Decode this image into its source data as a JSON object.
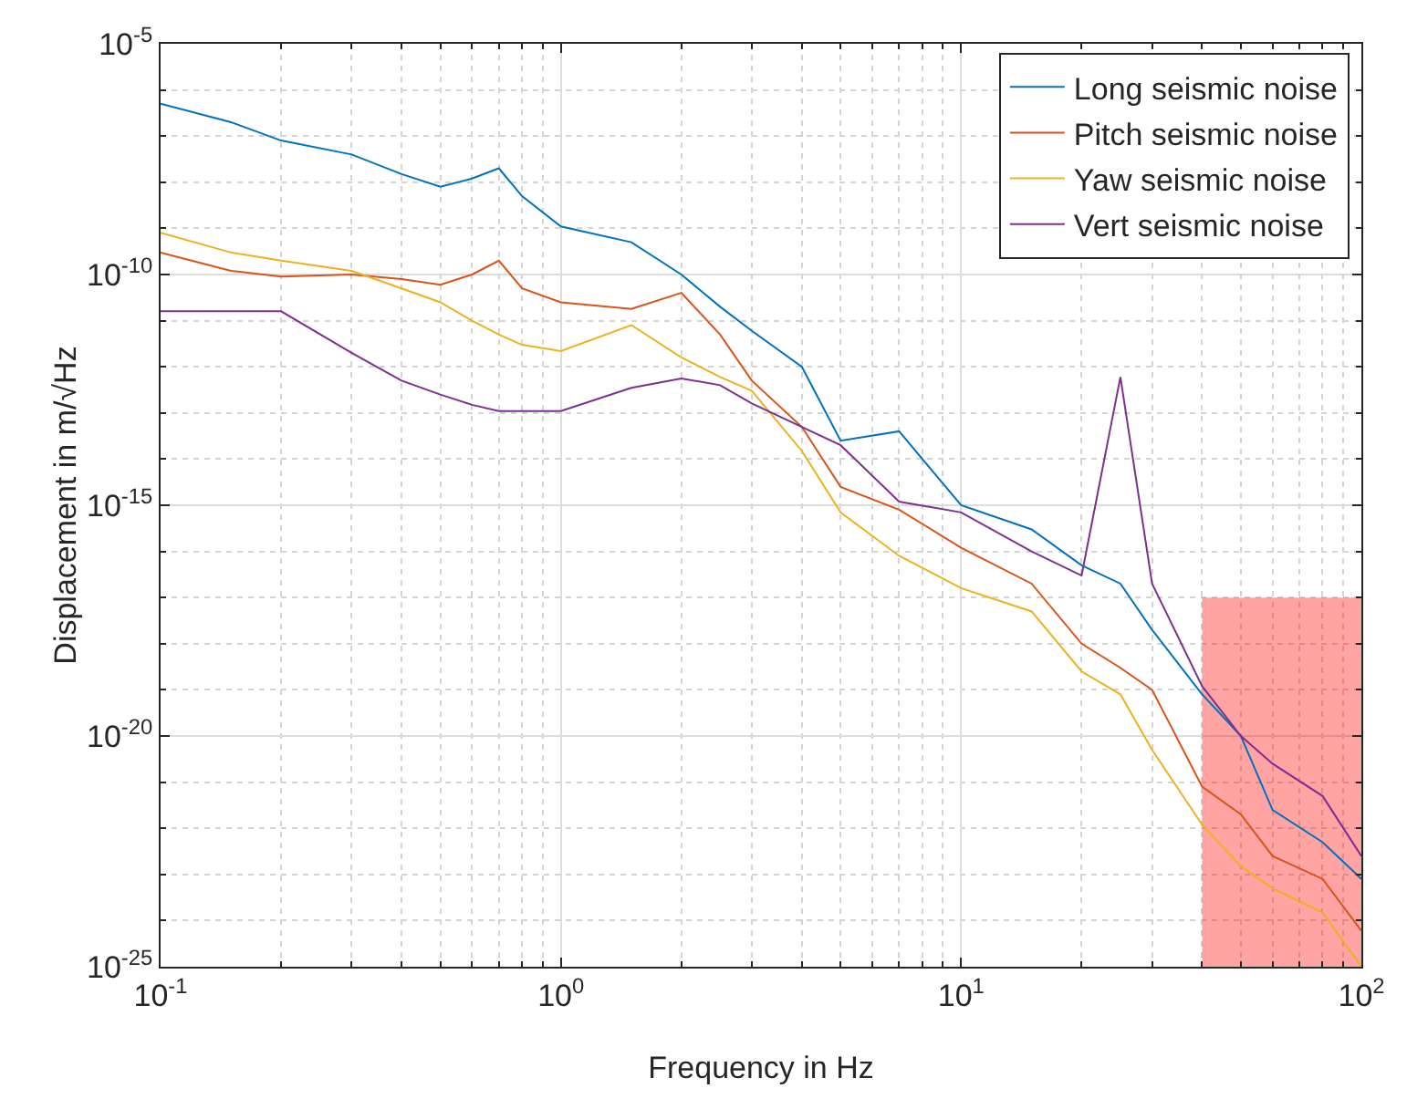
{
  "chart_data": {
    "type": "line",
    "xlabel": "Frequency in Hz",
    "ylabel": "Displacement in m/√Hz",
    "log": "xy",
    "grid": true,
    "legend": "top right",
    "x": [
      0.1,
      0.15,
      0.2,
      0.3,
      0.4,
      0.5,
      0.6,
      0.7,
      0.8,
      1,
      1.5,
      2,
      2.5,
      3,
      4,
      5,
      7,
      10,
      15,
      20,
      25,
      30,
      40,
      50,
      60,
      80,
      100
    ],
    "xlim": [
      0.1,
      100
    ],
    "xticks": [
      {
        "value": 0.1,
        "label": "10$^{-1}$"
      },
      {
        "value": 1,
        "label": "10$^{0}$"
      },
      {
        "value": 10,
        "label": "10$^{1}$"
      },
      {
        "value": 100,
        "label": "10$^{2}$"
      }
    ],
    "ylim": [
      1e-25,
      1e-05
    ],
    "yticks": [
      {
        "value": 1e-25,
        "label": "10$^{-25}$"
      },
      {
        "value": 1e-20,
        "label": "10$^{-20}$"
      },
      {
        "value": 1e-15,
        "label": "10$^{-15}$"
      },
      {
        "value": 1e-10,
        "label": "10$^{-10}$"
      },
      {
        "value": 1e-05,
        "label": "10$^{-5}$"
      }
    ],
    "series": [
      {
        "name": "Long seismic noise",
        "color": "#0072bd",
        "values": [
          5e-07,
          2e-07,
          8e-08,
          4e-08,
          1.5e-08,
          8e-09,
          1.2e-08,
          2e-08,
          5e-09,
          1.1e-09,
          5e-10,
          1e-10,
          2e-11,
          6e-12,
          1e-12,
          2.5e-14,
          4e-14,
          1e-15,
          3e-16,
          5e-17,
          2e-17,
          2e-18,
          8e-20,
          1e-20,
          2.5e-22,
          5e-23,
          8e-24
        ]
      },
      {
        "name": "Pitch seismic noise",
        "color": "#d95319",
        "values": [
          3e-10,
          1.2e-10,
          9e-11,
          1e-10,
          8e-11,
          6e-11,
          1e-10,
          2e-10,
          5e-11,
          2.5e-11,
          1.8e-11,
          4e-11,
          5e-12,
          5e-13,
          5e-14,
          2.5e-15,
          8e-16,
          1.2e-16,
          2e-17,
          1e-18,
          3e-19,
          1e-19,
          8e-22,
          2e-22,
          2.5e-23,
          8e-24,
          6e-25
        ]
      },
      {
        "name": "Yaw seismic noise",
        "color": "#edb120",
        "values": [
          8e-10,
          3e-10,
          2e-10,
          1.2e-10,
          5e-11,
          2.5e-11,
          1e-11,
          5e-12,
          3e-12,
          2.2e-12,
          8e-12,
          1.6e-12,
          6e-13,
          3e-13,
          1.5e-14,
          7e-16,
          8e-17,
          1.6e-17,
          5e-18,
          2.5e-19,
          8e-20,
          5e-21,
          1.2e-22,
          1.5e-23,
          5e-24,
          1.5e-24,
          1e-25
        ]
      },
      {
        "name": "Vert seismic noise",
        "color": "#7e2f8e",
        "values": [
          1.6e-11,
          1.6e-11,
          1.6e-11,
          2e-12,
          5e-13,
          2.5e-13,
          1.5e-13,
          1.1e-13,
          1.1e-13,
          1.1e-13,
          3.5e-13,
          5.6e-13,
          4e-13,
          1.6e-13,
          5e-14,
          2e-14,
          1.2e-15,
          7e-16,
          1e-16,
          3e-17,
          6e-13,
          2e-17,
          1.2e-19,
          1e-20,
          2.5e-21,
          5e-22,
          2.5e-23
        ]
      },
      {
        "type": "area",
        "color": "#ff0000",
        "x": [
          40,
          100
        ],
        "values": [
          1e-17,
          1e-17
        ]
      }
    ]
  }
}
